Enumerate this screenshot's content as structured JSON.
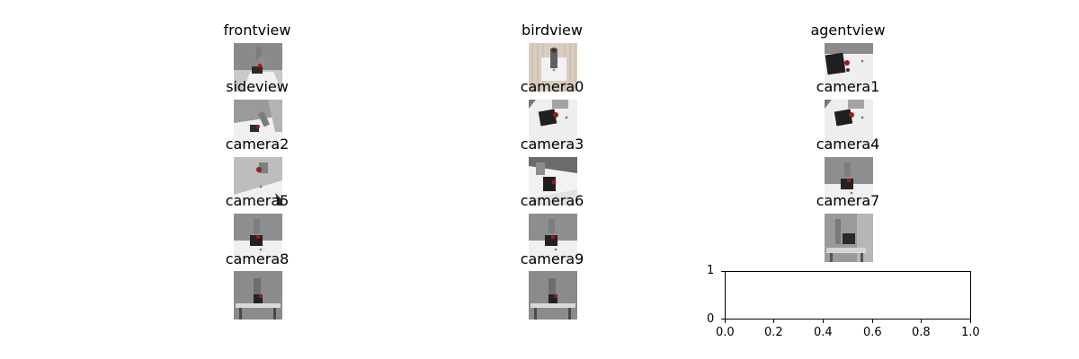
{
  "figure": {
    "panels": [
      {
        "title": "frontview",
        "scene": "front"
      },
      {
        "title": "birdview",
        "scene": "bird"
      },
      {
        "title": "agentview",
        "scene": "agent"
      },
      {
        "title": "sideview",
        "scene": "side"
      },
      {
        "title": "camera0",
        "scene": "table-close"
      },
      {
        "title": "camera1",
        "scene": "table-close"
      },
      {
        "title": "camera2",
        "scene": "table-top"
      },
      {
        "title": "camera3",
        "scene": "dark-angle"
      },
      {
        "title": "camera4",
        "scene": "front-gray"
      },
      {
        "title": "camera5",
        "scene": "front-gray"
      },
      {
        "title": "camera6",
        "scene": "front-gray"
      },
      {
        "title": "camera7",
        "scene": "room-gray"
      },
      {
        "title": "camera8",
        "scene": "far-gray"
      },
      {
        "title": "camera9",
        "scene": "far-gray"
      }
    ],
    "empty_axes": {
      "x_ticks": [
        "0.0",
        "0.2",
        "0.4",
        "0.6",
        "0.8",
        "1.0"
      ],
      "y_ticks": [
        "0",
        "1"
      ]
    }
  }
}
